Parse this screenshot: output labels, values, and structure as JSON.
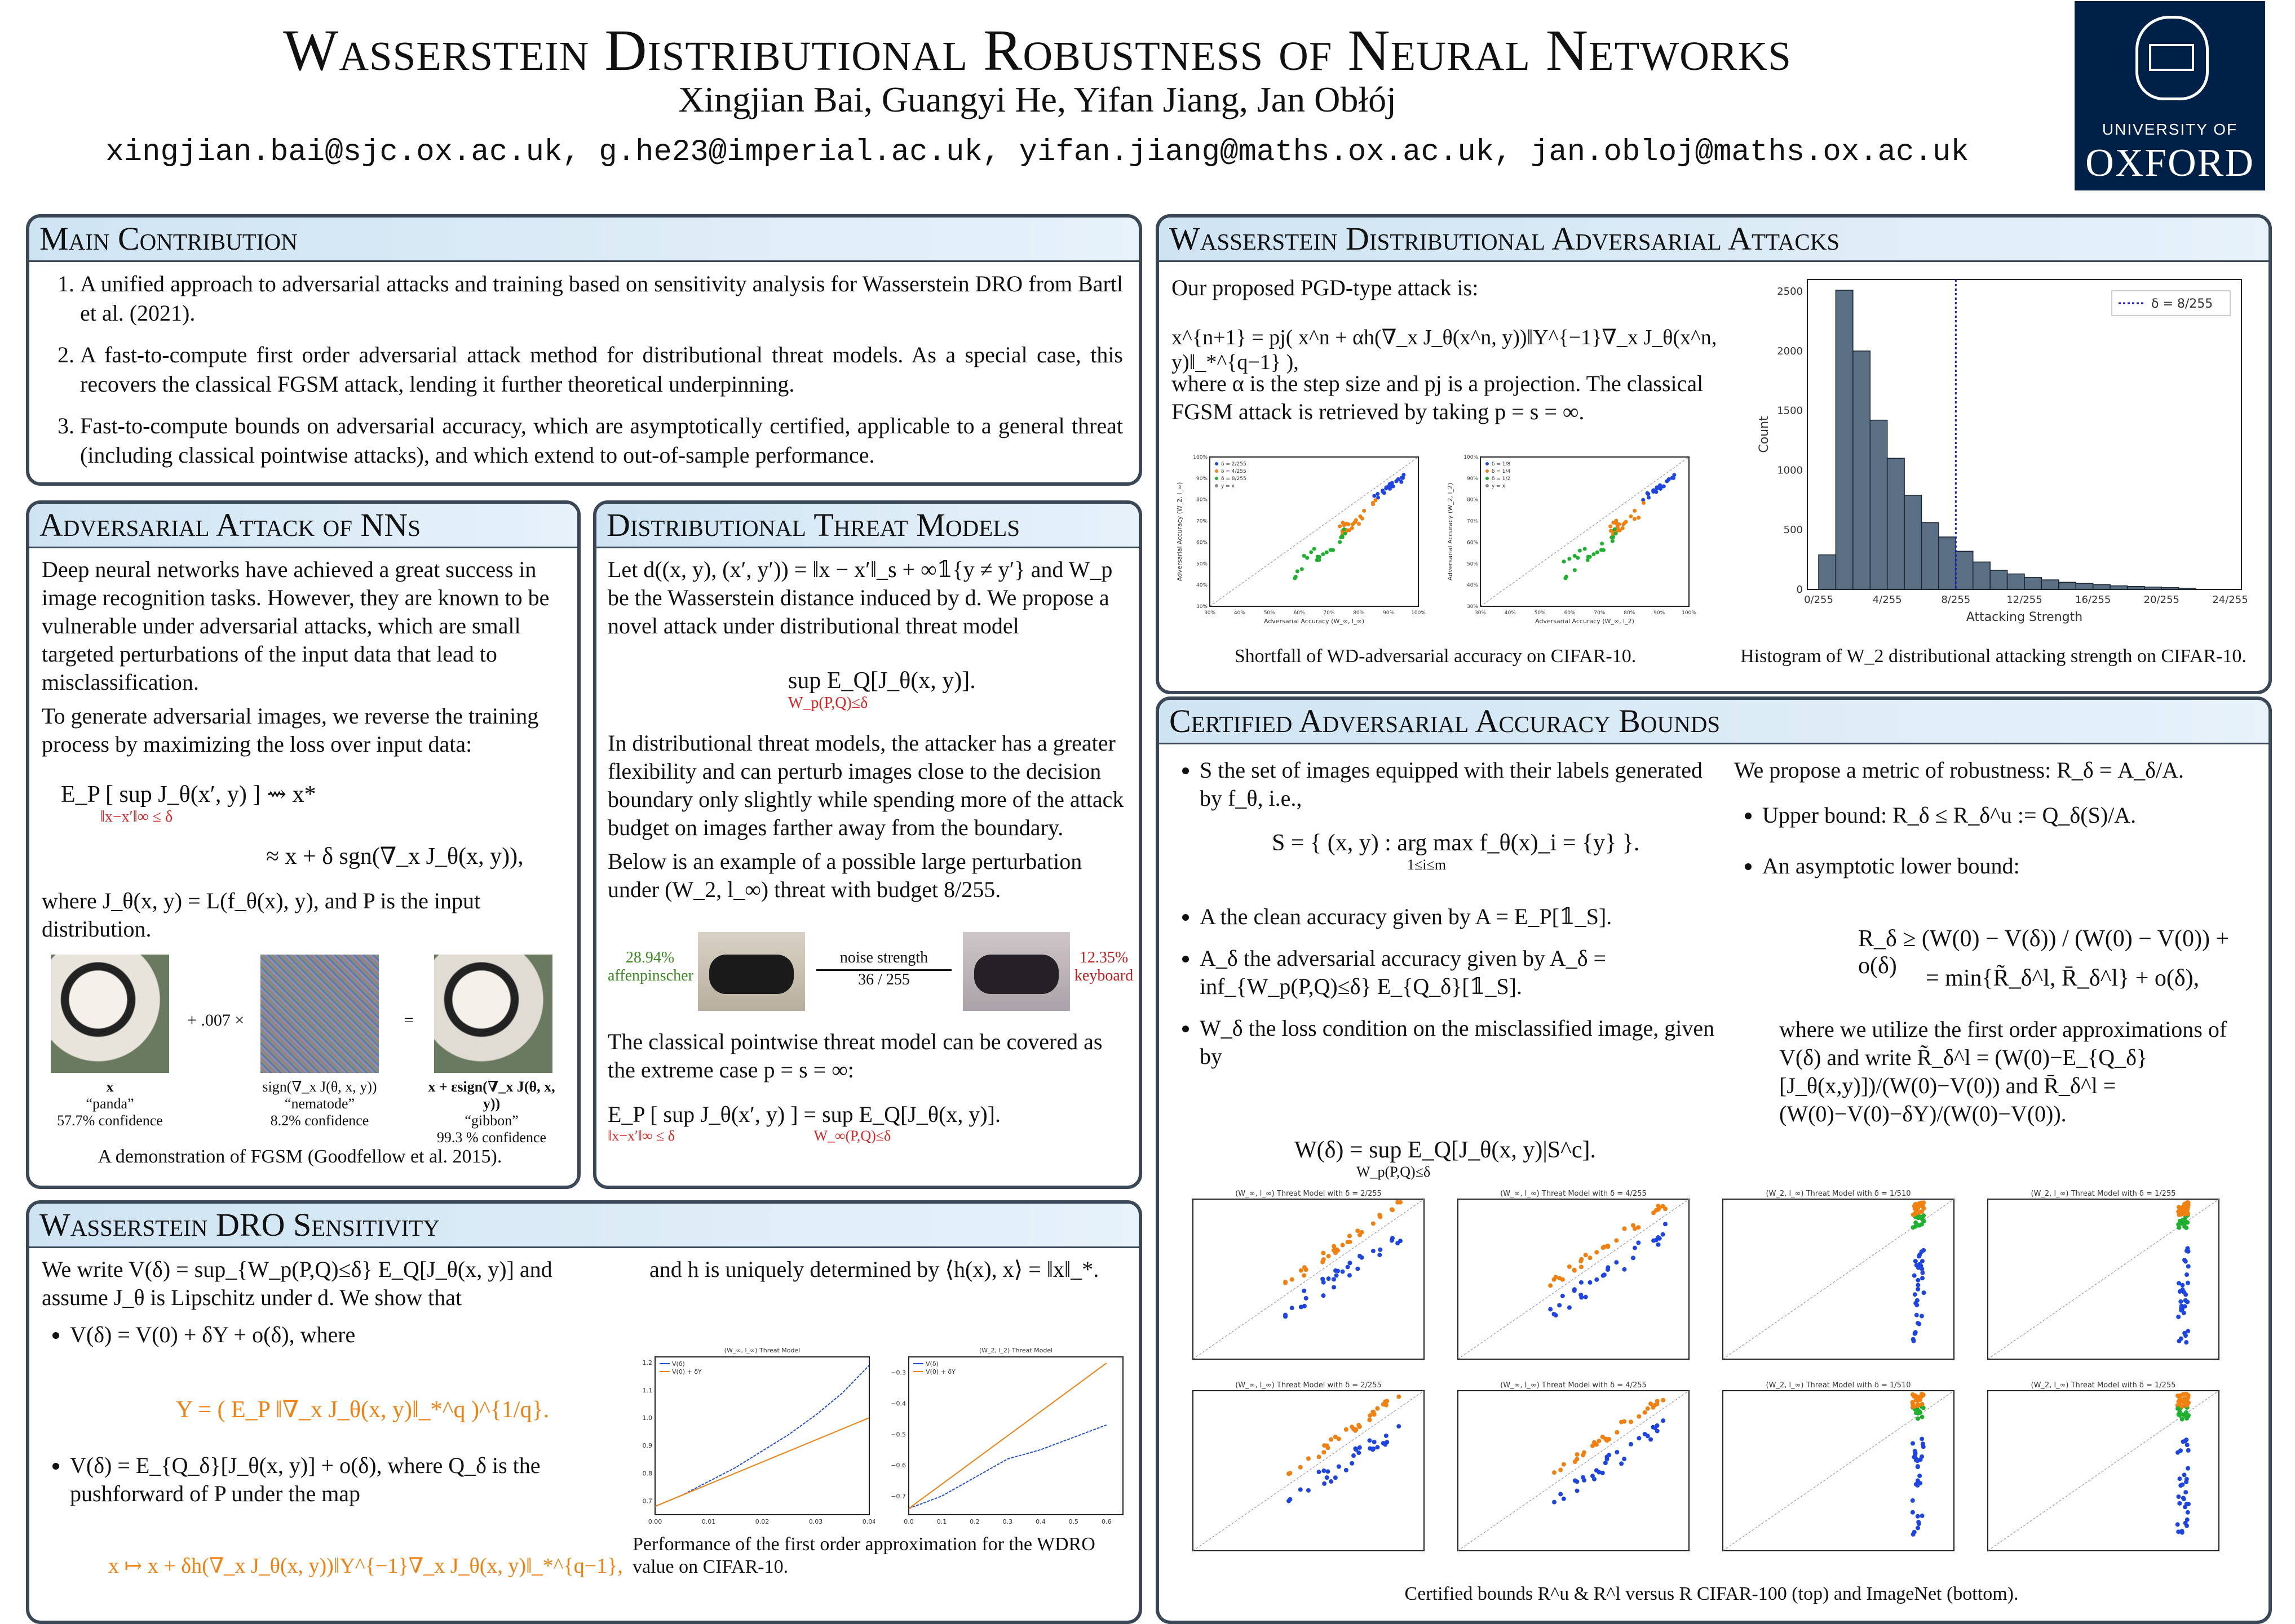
{
  "header": {
    "title": "Wasserstein Distributional Robustness of Neural Networks",
    "authors": "Xingjian Bai, Guangyi He, Yifan Jiang, Jan Obłój",
    "emails": "xingjian.bai@sjc.ox.ac.uk, g.he23@imperial.ac.uk, yifan.jiang@maths.ox.ac.uk, jan.obloj@maths.ox.ac.uk"
  },
  "logo": {
    "line1": "UNIVERSITY OF",
    "line2": "OXFORD"
  },
  "main_contribution": {
    "title": "Main Contribution",
    "items": [
      "A unified approach to adversarial attacks and training based on sensitivity analysis for Wasserstein DRO from Bartl et al. (2021).",
      "A fast-to-compute first order adversarial attack method for distributional threat models. As a special case, this recovers the classical FGSM attack, lending it further theoretical underpinning.",
      "Fast-to-compute bounds on adversarial accuracy, which are asymptotically certified, applicable to a general threat (including classical pointwise attacks), and which extend to out-of-sample performance."
    ]
  },
  "adv_attack": {
    "title": "Adversarial Attack of NNs",
    "p1": "Deep neural networks have achieved a great success in image recognition tasks. However, they are known to be vulnerable under adversarial attacks, which are small targeted perturbations of the input data that lead to misclassification.",
    "p2": "To generate adversarial images, we reverse the training process by maximizing the loss over input data:",
    "eq1": "E_P [ sup J_θ(x′, y) ] ⇝ x*",
    "eq1_sub": "‖x−x′‖∞ ≤ δ",
    "eq2": "≈ x + δ sgn(∇_x J_θ(x, y)),",
    "p3": "where J_θ(x, y) = L(f_θ(x), y), and P is the input distribution.",
    "panda_plus": "+ .007 ×",
    "panda_eq": "=",
    "panda_labels": [
      {
        "sym": "x",
        "name": "“panda”",
        "conf": "57.7% confidence"
      },
      {
        "sym": "sign(∇_x J(θ, x, y))",
        "name": "“nematode”",
        "conf": "8.2% confidence"
      },
      {
        "sym": "x + εsign(∇_x J(θ, x, y))",
        "name": "“gibbon”",
        "conf": "99.3 % confidence"
      }
    ],
    "caption": "A demonstration of FGSM (Goodfellow et al. 2015)."
  },
  "dist_threat": {
    "title": "Distributional Threat Models",
    "p1": "Let d((x, y), (x′, y′)) = ‖x − x′‖_s + ∞𝟙{y ≠ y′} and W_p be the Wasserstein distance induced by d. We propose a novel attack under distributional threat model",
    "eq1": "sup E_Q[J_θ(x, y)].",
    "eq1_sub": "W_p(P,Q)≤δ",
    "p2": "In distributional threat models, the attacker has a greater flexibility and can perturb images close to the decision boundary only slightly while spending more of the attack budget on images farther away from the boundary.",
    "p3": "Below is an example of a possible large perturbation under (W_2, l_∞) threat with budget 8/255.",
    "left_pct": "28.94%",
    "left_name": "affenpinscher",
    "noise_label": "noise strength",
    "noise_val": "36 / 255",
    "right_pct": "12.35%",
    "right_name": "keyboard",
    "p4": "The classical pointwise threat model can be covered as the extreme case p = s = ∞:",
    "eq2": "E_P [ sup J_θ(x′, y) ] = sup E_Q[J_θ(x, y)].",
    "eq2_sub1": "‖x−x′‖∞ ≤ δ",
    "eq2_sub2": "W_∞(P,Q)≤δ"
  },
  "wdro": {
    "title": "Wasserstein DRO Sensitivity",
    "p1": "We write V(δ) = sup_{W_p(P,Q)≤δ} E_Q[J_θ(x, y)] and assume J_θ is Lipschitz under d. We show that",
    "b1": "V(δ) = V(0) + δΥ + o(δ), where",
    "eq_upsilon": "Υ = ( E_P ‖∇_x J_θ(x, y)‖_*^q )^{1/q}.",
    "b2": "V(δ) = E_{Q_δ}[J_θ(x, y)] + o(δ), where Q_δ is the pushforward of P under the map",
    "eq_map": "x ↦ x + δh(∇_x J_θ(x, y))‖Υ^{−1}∇_x J_θ(x, y)‖_*^{q−1},",
    "p2": "and h is uniquely determined by ⟨h(x), x⟩ = ‖x‖_*.",
    "caption": "Performance of the first order approximation for the WDRO value on CIFAR-10."
  },
  "wdaa": {
    "title": "Wasserstein Distributional Adversarial Attacks",
    "p1": "Our proposed PGD-type attack is:",
    "eq1": "x^{n+1} = pj( x^n + αh(∇_x J_θ(x^n, y))‖Υ^{−1}∇_x J_θ(x^n, y)‖_*^{q−1} ),",
    "p2": "where α is the step size and pj is a projection. The classical FGSM attack is retrieved by taking p = s = ∞.",
    "caption_left": "Shortfall of WD-adversarial accuracy on CIFAR-10.",
    "caption_right": "Histogram of W_2 distributional attacking strength on CIFAR-10."
  },
  "certified": {
    "title": "Certified Adversarial Accuracy Bounds",
    "b1": "S the set of images equipped with their labels generated by f_θ, i.e.,",
    "eq_s": "S = { (x, y) : arg max f_θ(x)_i = {y} }.",
    "eq_s_sub": "1≤i≤m",
    "b2": "A the clean accuracy given by A = E_P[𝟙_S].",
    "b3": "A_δ the adversarial accuracy given by A_δ = inf_{W_p(P,Q)≤δ} E_{Q_δ}[𝟙_S].",
    "b4": "W_δ the loss condition on the misclassified image, given by",
    "eq_w": "W(δ) = sup E_Q[J_θ(x, y)|S^c].",
    "eq_w_sub": "W_p(P,Q)≤δ",
    "r1": "We propose a metric of robustness: R_δ = A_δ/A.",
    "rb1": "Upper bound: R_δ ≤ R_δ^u := Q_δ(S)/A.",
    "rb2": "An asymptotic lower bound:",
    "eq_lb1": "R_δ ≥ (W(0) − V(δ)) / (W(0) − V(0)) + o(δ)",
    "eq_lb2": "= min{R̃_δ^l, R̄_δ^l} + o(δ),",
    "r2": "where we utilize the first order approximations of V(δ) and write R̃_δ^l = (W(0)−E_{Q_δ}[J_θ(x,y)])/(W(0)−V(0)) and R̄_δ^l = (W(0)−V(0)−δΥ)/(W(0)−V(0)).",
    "caption": "Certified bounds R^u & R^l versus R CIFAR-100 (top) and ImageNet (bottom)."
  },
  "chart_data": [
    {
      "type": "line",
      "title": "(W_∞, l_∞) Threat Model",
      "legend": [
        "V(δ)",
        "V(0) + δΥ"
      ],
      "x_ticks": [
        "0.00",
        "0.01",
        "0.02",
        "0.03",
        "0.04"
      ],
      "y_ticks": [
        "0.7",
        "0.8",
        "0.9",
        "1.0",
        "1.1",
        "1.2"
      ],
      "xlim": [
        0,
        0.04
      ],
      "ylim": [
        0.65,
        1.22
      ],
      "series": [
        {
          "name": "V(δ)",
          "x": [
            0,
            0.005,
            0.01,
            0.015,
            0.02,
            0.025,
            0.03,
            0.035,
            0.04
          ],
          "y": [
            0.68,
            0.72,
            0.77,
            0.82,
            0.88,
            0.94,
            1.01,
            1.09,
            1.19
          ]
        },
        {
          "name": "V(0) + δΥ",
          "x": [
            0,
            0.04
          ],
          "y": [
            0.68,
            1.0
          ]
        }
      ]
    },
    {
      "type": "line",
      "title": "(W_2, l_2) Threat Model",
      "legend": [
        "V(δ)",
        "V(0) + δΥ"
      ],
      "x_ticks": [
        "0.0",
        "0.1",
        "0.2",
        "0.3",
        "0.4",
        "0.5",
        "0.6"
      ],
      "y_ticks": [
        "−0.7",
        "−0.6",
        "−0.5",
        "−0.4",
        "−0.3"
      ],
      "xlim": [
        0,
        0.65
      ],
      "ylim": [
        -0.76,
        -0.25
      ],
      "series": [
        {
          "name": "V(δ)",
          "x": [
            0,
            0.1,
            0.2,
            0.3,
            0.4,
            0.5,
            0.6
          ],
          "y": [
            -0.74,
            -0.7,
            -0.64,
            -0.58,
            -0.55,
            -0.51,
            -0.47
          ]
        },
        {
          "name": "V(0) + δΥ",
          "x": [
            0,
            0.6
          ],
          "y": [
            -0.74,
            -0.27
          ]
        }
      ]
    },
    {
      "type": "histogram",
      "legend": [
        "δ = 8/255"
      ],
      "xlabel": "Attacking Strength",
      "ylabel": "Count",
      "x_ticks": [
        "0/255",
        "4/255",
        "8/255",
        "12/255",
        "16/255",
        "20/255",
        "24/255"
      ],
      "y_ticks": [
        "0",
        "500",
        "1000",
        "1500",
        "2000",
        "2500"
      ],
      "ylim": [
        0,
        2600
      ],
      "bin_values": [
        290,
        2510,
        2000,
        1420,
        1100,
        790,
        560,
        440,
        320,
        230,
        160,
        130,
        100,
        80,
        60,
        50,
        40,
        30,
        25,
        20,
        15,
        10
      ],
      "vline": 8
    },
    {
      "type": "scatter",
      "xlabel": "Adversarial Accuracy (W_∞, l_∞)",
      "ylabel": "Adversarial Accuracy (W_2, l_∞)",
      "legend": [
        "δ = 2/255",
        "δ = 4/255",
        "δ = 8/255",
        "y = x"
      ],
      "x_ticks": [
        "30%",
        "40%",
        "50%",
        "60%",
        "70%",
        "80%",
        "90%",
        "100%"
      ],
      "y_ticks": [
        "30%",
        "40%",
        "50%",
        "60%",
        "70%",
        "80%",
        "90%",
        "100%"
      ]
    },
    {
      "type": "scatter",
      "xlabel": "Adversarial Accuracy (W_∞, l_2)",
      "ylabel": "Adversarial Accuracy (W_2, l_2)",
      "legend": [
        "δ = 1/8",
        "δ = 1/4",
        "δ = 1/2",
        "y = x"
      ],
      "x_ticks": [
        "30%",
        "40%",
        "50%",
        "60%",
        "70%",
        "80%",
        "90%",
        "100%"
      ],
      "y_ticks": [
        "30%",
        "40%",
        "50%",
        "60%",
        "70%",
        "80%",
        "90%",
        "100%"
      ]
    },
    {
      "type": "scatter_grid",
      "titles": [
        "(W_∞, l_∞) Threat Model with δ = 2/255",
        "(W_∞, l_∞) Threat Model with δ = 4/255",
        "(W_2, l_∞) Threat Model with δ = 1/510",
        "(W_2, l_∞) Threat Model with δ = 1/255",
        "(W_∞, l_∞) Threat Model with δ = 2/255",
        "(W_∞, l_∞) Threat Model with δ = 4/255",
        "(W_2, l_∞) Threat Model with δ = 1/510",
        "(W_2, l_∞) Threat Model with δ = 1/255"
      ]
    }
  ]
}
